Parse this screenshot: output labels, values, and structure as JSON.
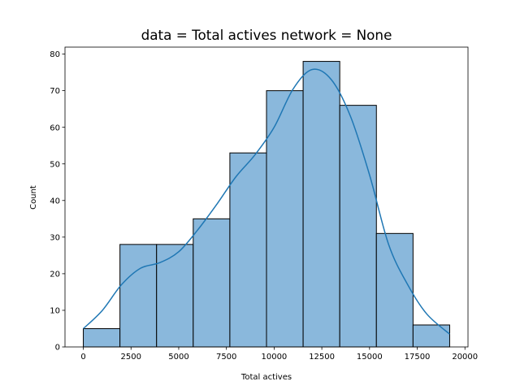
{
  "chart_data": {
    "type": "bar",
    "title": "data = Total actives network = None",
    "xlabel": "Total actives",
    "ylabel": "Count",
    "xlim": [
      -960,
      20160
    ],
    "ylim": [
      0,
      81.9
    ],
    "bin_edges": [
      0,
      1920,
      3840,
      5760,
      7680,
      9600,
      11520,
      13440,
      15360,
      17280,
      19200
    ],
    "values": [
      5,
      28,
      28,
      35,
      53,
      70,
      78,
      66,
      31,
      6
    ],
    "x_ticks": [
      0,
      2500,
      5000,
      7500,
      10000,
      12500,
      15000,
      17500,
      20000
    ],
    "x_tick_labels": [
      "0",
      "2500",
      "5000",
      "7500",
      "10000",
      "12500",
      "15000",
      "17500",
      "20000"
    ],
    "y_ticks": [
      0,
      10,
      20,
      30,
      40,
      50,
      60,
      70,
      80
    ],
    "y_tick_labels": [
      "0",
      "10",
      "20",
      "30",
      "40",
      "50",
      "60",
      "70",
      "80"
    ],
    "kde": {
      "x": [
        0,
        1000,
        2000,
        3000,
        4000,
        5000,
        6000,
        7000,
        8000,
        9000,
        10000,
        11000,
        12000,
        13000,
        14000,
        15000,
        16000,
        17000,
        18000,
        19200
      ],
      "y": [
        5,
        10,
        17,
        21.5,
        23,
        26,
        32,
        39,
        46.5,
        52.5,
        60,
        70.5,
        75.8,
        73,
        63,
        47,
        28,
        17,
        9,
        3.5
      ]
    },
    "grid": false,
    "legend": "none",
    "colors": {
      "bar_fill": "#8ab8dc",
      "bar_edge": "#000000",
      "kde_line": "#1f77b4"
    }
  }
}
